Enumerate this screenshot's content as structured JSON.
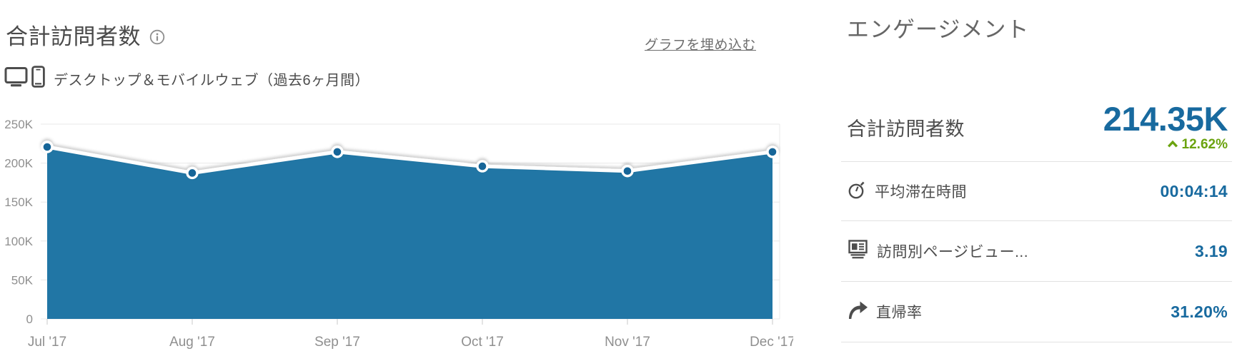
{
  "colors": {
    "accent_blue": "#186a9f",
    "area_blue": "#2176a5",
    "marker_blue": "#126598",
    "positive_green": "#6ba30f",
    "text_gray": "#4d4d4d",
    "axis_gray": "#8f8f8f",
    "grid_gray": "#e8e8e8",
    "divider_gray": "#e2e2e2"
  },
  "visitors": {
    "title": "合計訪問者数",
    "info_icon": "info-icon",
    "embed_link": "グラフを埋め込む",
    "device_icons": [
      "desktop-icon",
      "mobile-icon"
    ],
    "subtitle": "デスクトップ＆モバイルウェブ（過去6ヶ月間）"
  },
  "chart_data": {
    "type": "area",
    "series_name": "合計訪問者数",
    "categories": [
      "Jul '17",
      "Aug '17",
      "Sep '17",
      "Oct '17",
      "Nov '17",
      "Dec '17"
    ],
    "values": [
      220.7,
      187.3,
      214.4,
      195.9,
      189.8,
      214.35
    ],
    "unit": "K (thousands of visits)",
    "xlabel": "",
    "ylabel": "",
    "ylim": [
      0,
      250
    ],
    "yticks": [
      {
        "v": 250,
        "label": "250K"
      },
      {
        "v": 200,
        "label": "200K"
      },
      {
        "v": 150,
        "label": "150K"
      },
      {
        "v": 100,
        "label": "100K"
      },
      {
        "v": 50,
        "label": "50K"
      },
      {
        "v": 0,
        "label": "0"
      }
    ],
    "grid": true,
    "legend": "none",
    "area_color": "#2176a5",
    "line_color": "#ffffff",
    "marker_color": "#126598"
  },
  "engagement": {
    "header": "エンゲージメント",
    "primary": {
      "label": "合計訪問者数",
      "value": "214.35K",
      "change": "12.62%",
      "direction": "up"
    },
    "rows": [
      {
        "icon": "stopwatch-icon",
        "label": "平均滞在時間",
        "value": "00:04:14"
      },
      {
        "icon": "pages-icon",
        "label": "訪問別ページビュー...",
        "value": "3.19"
      },
      {
        "icon": "bounce-arrow-icon",
        "label": "直帰率",
        "value": "31.20%"
      }
    ]
  }
}
